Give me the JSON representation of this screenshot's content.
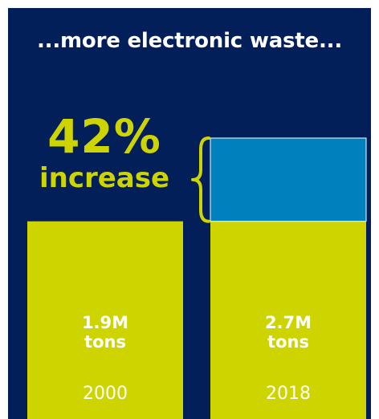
{
  "title": "...more electronic waste...",
  "annotation": {
    "value": "42%",
    "label": "increase"
  },
  "colors": {
    "background": "#021f5a",
    "bar": "#cdd400",
    "increase_segment": "#0080bd",
    "text_light": "#ffffff",
    "accent_text": "#cdd400"
  },
  "chart_data": {
    "type": "bar",
    "categories": [
      "2000",
      "2018"
    ],
    "values": [
      1.9,
      2.7
    ],
    "unit": "M tons",
    "value_labels": [
      {
        "line1": "1.9M",
        "line2": "tons"
      },
      {
        "line1": "2.7M",
        "line2": "tons"
      }
    ],
    "increase": {
      "from": 1.9,
      "to": 2.7,
      "label": "42%"
    },
    "title": "...more electronic waste...",
    "xlabel": "",
    "ylabel": ""
  }
}
